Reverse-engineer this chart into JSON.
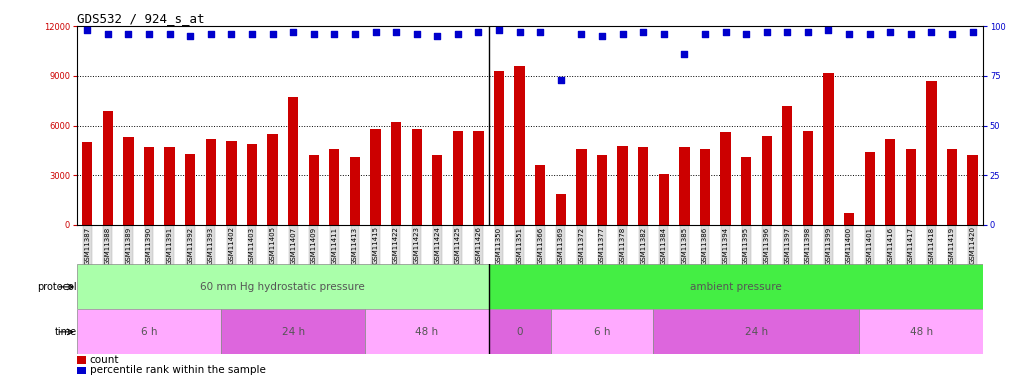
{
  "title": "GDS532 / 924_s_at",
  "samples": [
    "GSM11387",
    "GSM11388",
    "GSM11389",
    "GSM11390",
    "GSM11391",
    "GSM11392",
    "GSM11393",
    "GSM11402",
    "GSM11403",
    "GSM11405",
    "GSM11407",
    "GSM11409",
    "GSM11411",
    "GSM11413",
    "GSM11415",
    "GSM11422",
    "GSM11423",
    "GSM11424",
    "GSM11425",
    "GSM11426",
    "GSM11350",
    "GSM11351",
    "GSM11366",
    "GSM11369",
    "GSM11372",
    "GSM11377",
    "GSM11378",
    "GSM11382",
    "GSM11384",
    "GSM11385",
    "GSM11386",
    "GSM11394",
    "GSM11395",
    "GSM11396",
    "GSM11397",
    "GSM11398",
    "GSM11399",
    "GSM11400",
    "GSM11401",
    "GSM11416",
    "GSM11417",
    "GSM11418",
    "GSM11419",
    "GSM11420"
  ],
  "bar_values": [
    5000,
    6900,
    5300,
    4700,
    4700,
    4300,
    5200,
    5100,
    4900,
    5500,
    7700,
    4200,
    4600,
    4100,
    5800,
    6200,
    5800,
    4200,
    5700,
    5700,
    9300,
    9600,
    3600,
    1900,
    4600,
    4200,
    4800,
    4700,
    3100,
    4700,
    4600,
    5600,
    4100,
    5400,
    7200,
    5700,
    9200,
    700,
    4400,
    5200,
    4600,
    8700,
    4600,
    4200
  ],
  "percentile_values": [
    98,
    96,
    96,
    96,
    96,
    95,
    96,
    96,
    96,
    96,
    97,
    96,
    96,
    96,
    97,
    97,
    96,
    95,
    96,
    97,
    98,
    97,
    97,
    73,
    96,
    95,
    96,
    97,
    96,
    86,
    96,
    97,
    96,
    97,
    97,
    97,
    98,
    96,
    96,
    97,
    96,
    97,
    96,
    97
  ],
  "ylim_left": [
    0,
    12000
  ],
  "ylim_right": [
    0,
    100
  ],
  "yticks_left": [
    0,
    3000,
    6000,
    9000,
    12000
  ],
  "yticks_right": [
    0,
    25,
    50,
    75,
    100
  ],
  "bar_color": "#cc0000",
  "dot_color": "#0000cc",
  "background_color": "#ffffff",
  "protocol_groups": [
    {
      "label": "60 mm Hg hydrostatic pressure",
      "start": 0,
      "end": 20,
      "color": "#aaffaa"
    },
    {
      "label": "ambient pressure",
      "start": 20,
      "end": 44,
      "color": "#44ee44"
    }
  ],
  "time_groups": [
    {
      "label": "6 h",
      "start": 0,
      "end": 7,
      "color": "#ffaaff"
    },
    {
      "label": "24 h",
      "start": 7,
      "end": 14,
      "color": "#dd66dd"
    },
    {
      "label": "48 h",
      "start": 14,
      "end": 20,
      "color": "#ffaaff"
    },
    {
      "label": "0",
      "start": 20,
      "end": 23,
      "color": "#dd66dd"
    },
    {
      "label": "6 h",
      "start": 23,
      "end": 28,
      "color": "#ffaaff"
    },
    {
      "label": "24 h",
      "start": 28,
      "end": 38,
      "color": "#dd66dd"
    },
    {
      "label": "48 h",
      "start": 38,
      "end": 44,
      "color": "#ffaaff"
    }
  ],
  "tick_fontsize": 6,
  "title_fontsize": 9
}
